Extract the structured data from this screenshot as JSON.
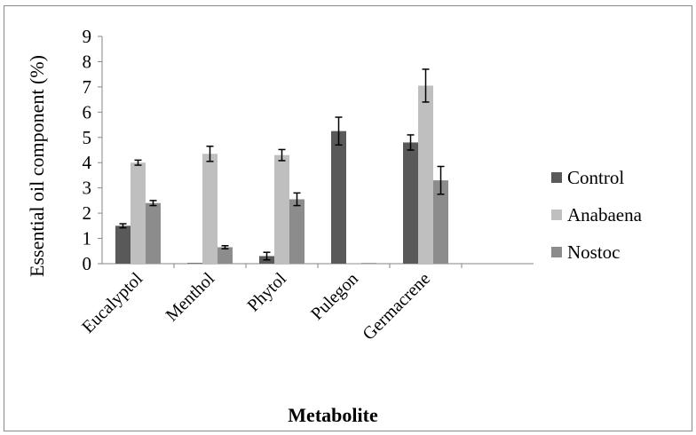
{
  "chart_data": {
    "type": "bar",
    "title": "",
    "xlabel": "Metabolite",
    "ylabel": "Essential oil component (%)",
    "ylim": [
      0,
      9
    ],
    "yticks": [
      0,
      1,
      2,
      3,
      4,
      5,
      6,
      7,
      8,
      9
    ],
    "categories": [
      "Eucalyptol",
      "Menthol",
      "Phytol",
      "Pulegon",
      "Germacrene"
    ],
    "series": [
      {
        "name": "Control",
        "color": "#595959",
        "values": [
          1.5,
          0,
          0.3,
          5.25,
          4.8
        ],
        "errors": [
          0.08,
          0,
          0.15,
          0.55,
          0.3
        ]
      },
      {
        "name": "Anabaena",
        "color": "#bfbfbf",
        "values": [
          4.0,
          4.35,
          4.3,
          0,
          7.05
        ],
        "errors": [
          0.1,
          0.3,
          0.22,
          0,
          0.65
        ]
      },
      {
        "name": "Nostoc",
        "color": "#8c8c8c",
        "values": [
          2.4,
          0.65,
          2.55,
          0,
          3.3
        ],
        "errors": [
          0.1,
          0.06,
          0.25,
          0,
          0.55
        ]
      }
    ],
    "legend_position": "right",
    "grid": false
  }
}
